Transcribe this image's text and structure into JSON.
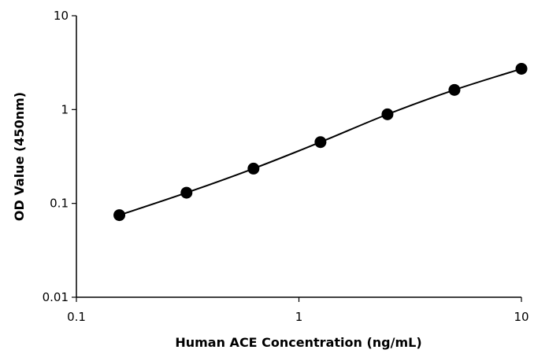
{
  "chart_data": {
    "type": "scatter",
    "title": "",
    "xlabel": "Human ACE Concentration (ng/mL)",
    "ylabel": "OD Value (450nm)",
    "xscale": "log",
    "yscale": "log",
    "xlim": [
      0.1,
      10
    ],
    "ylim": [
      0.01,
      10
    ],
    "xticks": [
      "0.1",
      "1",
      "10"
    ],
    "yticks": [
      "0.01",
      "0.1",
      "1",
      "10"
    ],
    "grid": false,
    "legend": "none",
    "series": [
      {
        "x": [
          0.156,
          0.3125,
          0.625,
          1.25,
          2.5,
          5,
          10
        ],
        "y": [
          0.075,
          0.13,
          0.235,
          0.45,
          0.89,
          1.62,
          2.72
        ],
        "color": "#000000",
        "marker": "circle",
        "line": "smooth"
      }
    ]
  }
}
